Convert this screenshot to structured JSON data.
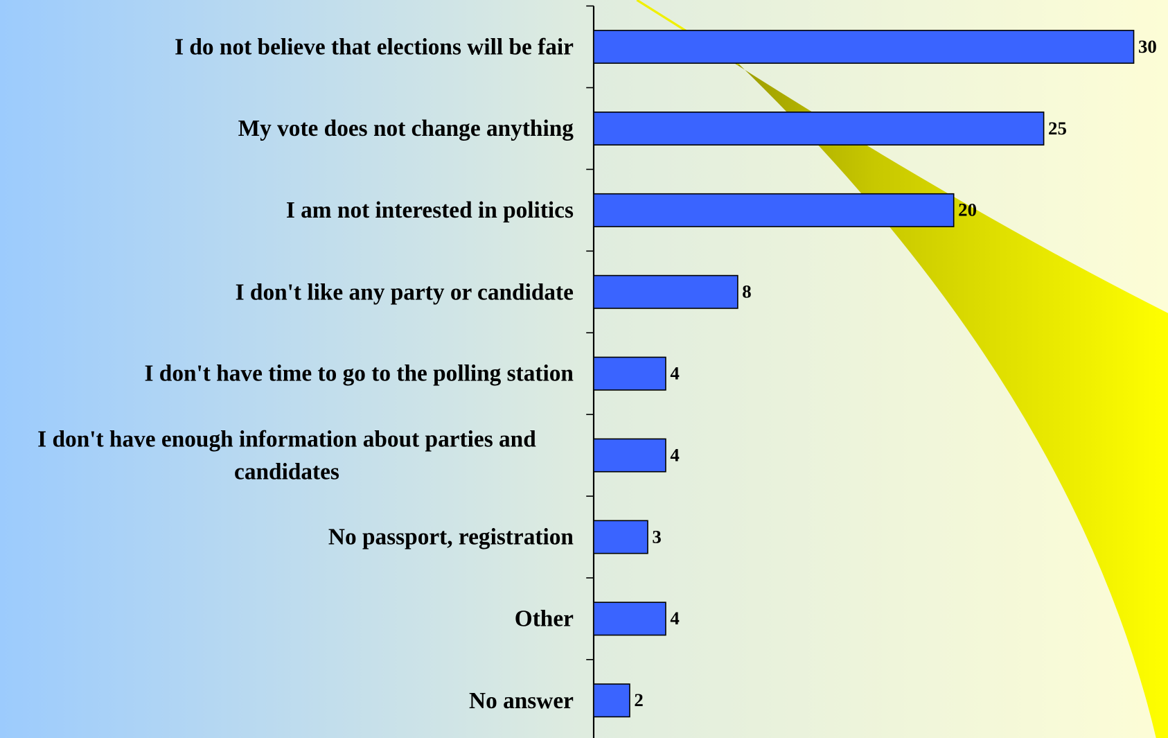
{
  "chart_data": {
    "type": "bar",
    "orientation": "horizontal",
    "categories": [
      "I do not believe that elections will be fair",
      "My vote does not change anything",
      "I am not interested in politics",
      "I don't like any party or candidate",
      "I don't have time to go to the polling station",
      "I don't have enough information about parties and candidates",
      "No passport, registration",
      "Other",
      "No answer"
    ],
    "values": [
      30,
      25,
      20,
      8,
      4,
      4,
      3,
      4,
      2
    ],
    "color": "#3a64ff"
  }
}
